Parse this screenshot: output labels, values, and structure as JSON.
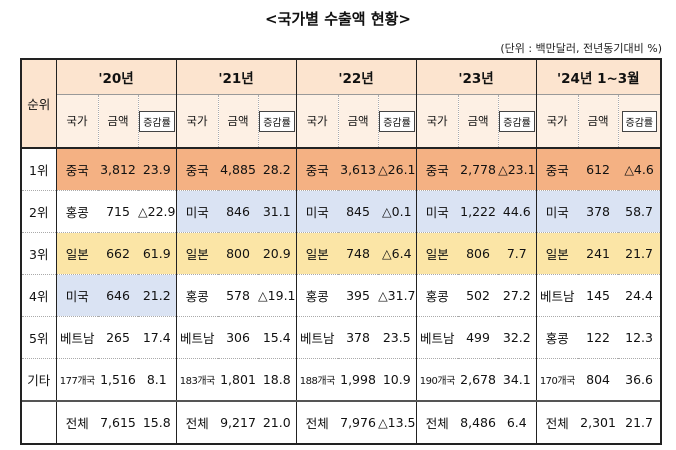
{
  "title": "<국가별 수출액 현황>",
  "unit_note": "(단위 : 백만달러, 전년동기대비 %)",
  "headers": {
    "rank": "순위",
    "years": [
      "'20년",
      "'21년",
      "'22년",
      "'23년",
      "'24년 1~3월"
    ],
    "country": "국가",
    "amount": "금액",
    "growth": "증감률"
  },
  "rows": [
    {
      "rank": "1위",
      "cells": [
        [
          "중국",
          "3,812",
          "23.9"
        ],
        [
          "중국",
          "4,885",
          "28.2"
        ],
        [
          "중국",
          "3,613",
          "△26.1"
        ],
        [
          "중국",
          "2,778",
          "△23.1"
        ],
        [
          "중국",
          "612",
          "△4.6"
        ]
      ]
    },
    {
      "rank": "2위",
      "cells": [
        [
          "홍콩",
          "715",
          "△22.9"
        ],
        [
          "미국",
          "846",
          "31.1"
        ],
        [
          "미국",
          "845",
          "△0.1"
        ],
        [
          "미국",
          "1,222",
          "44.6"
        ],
        [
          "미국",
          "378",
          "58.7"
        ]
      ]
    },
    {
      "rank": "3위",
      "cells": [
        [
          "일본",
          "662",
          "61.9"
        ],
        [
          "일본",
          "800",
          "20.9"
        ],
        [
          "일본",
          "748",
          "△6.4"
        ],
        [
          "일본",
          "806",
          "7.7"
        ],
        [
          "일본",
          "241",
          "21.7"
        ]
      ]
    },
    {
      "rank": "4위",
      "cells": [
        [
          "미국",
          "646",
          "21.2"
        ],
        [
          "홍콩",
          "578",
          "△19.1"
        ],
        [
          "홍콩",
          "395",
          "△31.7"
        ],
        [
          "홍콩",
          "502",
          "27.2"
        ],
        [
          "베트남",
          "145",
          "24.4"
        ]
      ]
    },
    {
      "rank": "5위",
      "cells": [
        [
          "베트남",
          "265",
          "17.4"
        ],
        [
          "베트남",
          "306",
          "15.4"
        ],
        [
          "베트남",
          "378",
          "23.5"
        ],
        [
          "베트남",
          "499",
          "32.2"
        ],
        [
          "홍콩",
          "122",
          "12.3"
        ]
      ]
    },
    {
      "rank": "기타",
      "cells": [
        [
          "177개국",
          "1,516",
          "8.1"
        ],
        [
          "183개국",
          "1,801",
          "18.8"
        ],
        [
          "188개국",
          "1,998",
          "10.9"
        ],
        [
          "190개국",
          "2,678",
          "34.1"
        ],
        [
          "170개국",
          "804",
          "36.6"
        ]
      ]
    },
    {
      "rank": "",
      "cells": [
        [
          "전체",
          "7,615",
          "15.8"
        ],
        [
          "전체",
          "9,217",
          "21.0"
        ],
        [
          "전체",
          "7,976",
          "△13.5"
        ],
        [
          "전체",
          "8,486",
          "6.4"
        ],
        [
          "전체",
          "2,301",
          "21.7"
        ]
      ]
    }
  ]
}
